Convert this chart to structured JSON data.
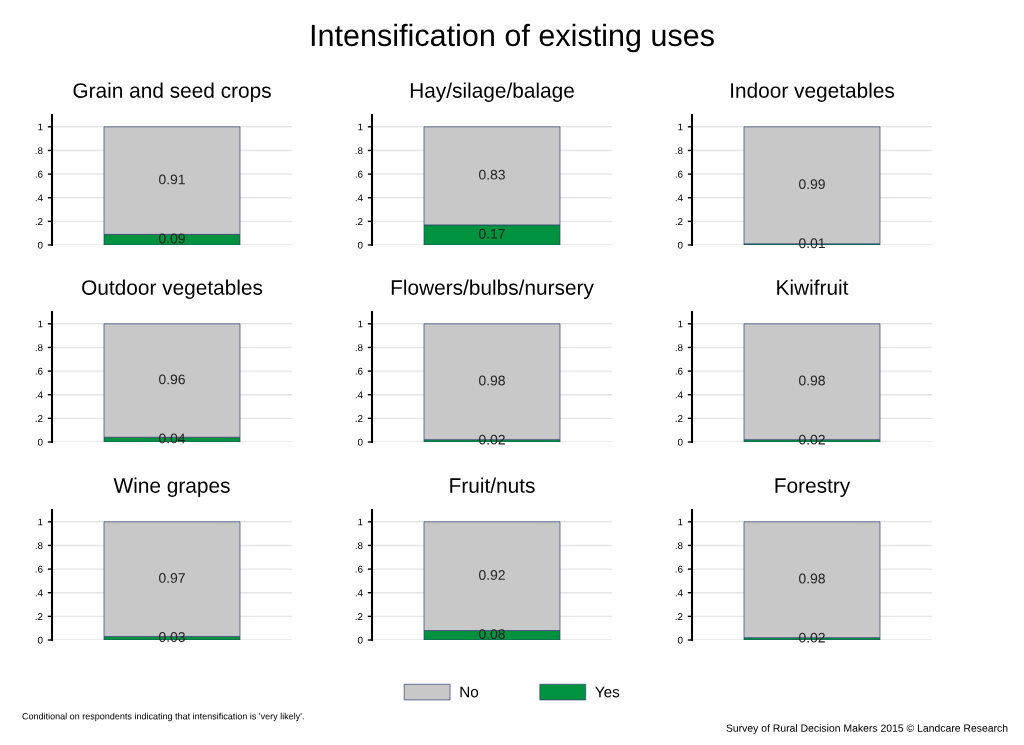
{
  "chart_data": [
    {
      "type": "bar",
      "title": "Grain and seed crops",
      "categories": [
        null
      ],
      "stacked": true,
      "data_labels": true,
      "grid": "y",
      "legend": "bottom",
      "ylim": [
        0,
        1.1
      ],
      "yticks": [
        0,
        {
          "value": 0.2,
          "label": ".2"
        },
        {
          "value": 0.4,
          "label": ".4"
        },
        {
          "value": 0.6,
          "label": ".6"
        },
        {
          "value": 0.8,
          "label": ".8"
        },
        1
      ],
      "series": [
        {
          "name": "Yes",
          "color": "#00923f",
          "values": [
            0.09
          ]
        },
        {
          "name": "No",
          "color": "#c8c8c8",
          "values": [
            0.91
          ]
        }
      ]
    },
    {
      "type": "bar",
      "title": "Hay/silage/balage",
      "categories": [
        null
      ],
      "stacked": true,
      "data_labels": true,
      "grid": "y",
      "legend": "bottom",
      "ylim": [
        0,
        1.1
      ],
      "yticks": [
        0,
        {
          "value": 0.2,
          "label": ".2"
        },
        {
          "value": 0.4,
          "label": ".4"
        },
        {
          "value": 0.6,
          "label": ".6"
        },
        {
          "value": 0.8,
          "label": ".8"
        },
        1
      ],
      "series": [
        {
          "name": "Yes",
          "color": "#00923f",
          "values": [
            0.17
          ]
        },
        {
          "name": "No",
          "color": "#c8c8c8",
          "values": [
            0.83
          ]
        }
      ]
    },
    {
      "type": "bar",
      "title": "Indoor vegetables",
      "categories": [
        null
      ],
      "stacked": true,
      "data_labels": true,
      "grid": "y",
      "legend": "bottom",
      "ylim": [
        0,
        1.1
      ],
      "yticks": [
        0,
        {
          "value": 0.2,
          "label": ".2"
        },
        {
          "value": 0.4,
          "label": ".4"
        },
        {
          "value": 0.6,
          "label": ".6"
        },
        {
          "value": 0.8,
          "label": ".8"
        },
        1
      ],
      "series": [
        {
          "name": "Yes",
          "color": "#00923f",
          "values": [
            0.01
          ]
        },
        {
          "name": "No",
          "color": "#c8c8c8",
          "values": [
            0.99
          ]
        }
      ]
    },
    {
      "type": "bar",
      "title": "Outdoor vegetables",
      "categories": [
        null
      ],
      "stacked": true,
      "data_labels": true,
      "grid": "y",
      "legend": "bottom",
      "ylim": [
        0,
        1.1
      ],
      "yticks": [
        0,
        {
          "value": 0.2,
          "label": ".2"
        },
        {
          "value": 0.4,
          "label": ".4"
        },
        {
          "value": 0.6,
          "label": ".6"
        },
        {
          "value": 0.8,
          "label": ".8"
        },
        1
      ],
      "series": [
        {
          "name": "Yes",
          "color": "#00923f",
          "values": [
            0.04
          ]
        },
        {
          "name": "No",
          "color": "#c8c8c8",
          "values": [
            0.96
          ]
        }
      ]
    },
    {
      "type": "bar",
      "title": "Flowers/bulbs/nursery",
      "categories": [
        null
      ],
      "stacked": true,
      "data_labels": true,
      "grid": "y",
      "legend": "bottom",
      "ylim": [
        0,
        1.1
      ],
      "yticks": [
        0,
        {
          "value": 0.2,
          "label": ".2"
        },
        {
          "value": 0.4,
          "label": ".4"
        },
        {
          "value": 0.6,
          "label": ".6"
        },
        {
          "value": 0.8,
          "label": ".8"
        },
        1
      ],
      "series": [
        {
          "name": "Yes",
          "color": "#00923f",
          "values": [
            0.02
          ]
        },
        {
          "name": "No",
          "color": "#c8c8c8",
          "values": [
            0.98
          ]
        }
      ]
    },
    {
      "type": "bar",
      "title": "Kiwifruit",
      "categories": [
        null
      ],
      "stacked": true,
      "data_labels": true,
      "grid": "y",
      "legend": "bottom",
      "ylim": [
        0,
        1.1
      ],
      "yticks": [
        0,
        {
          "value": 0.2,
          "label": ".2"
        },
        {
          "value": 0.4,
          "label": ".4"
        },
        {
          "value": 0.6,
          "label": ".6"
        },
        {
          "value": 0.8,
          "label": ".8"
        },
        1
      ],
      "series": [
        {
          "name": "Yes",
          "color": "#00923f",
          "values": [
            0.02
          ]
        },
        {
          "name": "No",
          "color": "#c8c8c8",
          "values": [
            0.98
          ]
        }
      ]
    },
    {
      "type": "bar",
      "title": "Wine grapes",
      "categories": [
        null
      ],
      "stacked": true,
      "data_labels": true,
      "grid": "y",
      "legend": "bottom",
      "ylim": [
        0,
        1.1
      ],
      "yticks": [
        0,
        {
          "value": 0.2,
          "label": ".2"
        },
        {
          "value": 0.4,
          "label": ".4"
        },
        {
          "value": 0.6,
          "label": ".6"
        },
        {
          "value": 0.8,
          "label": ".8"
        },
        1
      ],
      "series": [
        {
          "name": "Yes",
          "color": "#00923f",
          "values": [
            0.03
          ]
        },
        {
          "name": "No",
          "color": "#c8c8c8",
          "values": [
            0.97
          ]
        }
      ]
    },
    {
      "type": "bar",
      "title": "Fruit/nuts",
      "categories": [
        null
      ],
      "stacked": true,
      "data_labels": true,
      "grid": "y",
      "legend": "bottom",
      "ylim": [
        0,
        1.1
      ],
      "yticks": [
        0,
        {
          "value": 0.2,
          "label": ".2"
        },
        {
          "value": 0.4,
          "label": ".4"
        },
        {
          "value": 0.6,
          "label": ".6"
        },
        {
          "value": 0.8,
          "label": ".8"
        },
        1
      ],
      "series": [
        {
          "name": "Yes",
          "color": "#00923f",
          "values": [
            0.08
          ]
        },
        {
          "name": "No",
          "color": "#c8c8c8",
          "values": [
            0.92
          ]
        }
      ]
    },
    {
      "type": "bar",
      "title": "Forestry",
      "categories": [
        null
      ],
      "stacked": true,
      "data_labels": true,
      "grid": "y",
      "legend": "bottom",
      "ylim": [
        0,
        1.1
      ],
      "yticks": [
        0,
        {
          "value": 0.2,
          "label": ".2"
        },
        {
          "value": 0.4,
          "label": ".4"
        },
        {
          "value": 0.6,
          "label": ".6"
        },
        {
          "value": 0.8,
          "label": ".8"
        },
        1
      ],
      "series": [
        {
          "name": "Yes",
          "color": "#00923f",
          "values": [
            0.02
          ]
        },
        {
          "name": "No",
          "color": "#c8c8c8",
          "values": [
            0.98
          ]
        }
      ]
    },
    {
      "type": "other",
      "title": "Intensification of existing uses",
      "annotations": [
        "Conditional on respondents indicating that intensification is 'very likely'.",
        "Survey of Rural Decision Makers 2015 © Landcare Research"
      ]
    }
  ]
}
